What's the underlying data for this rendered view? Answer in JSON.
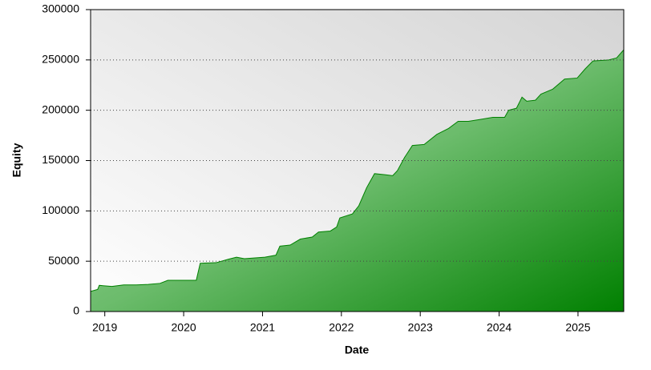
{
  "chart_data": {
    "type": "area",
    "x_label": "Date",
    "y_label": "Equity",
    "color": "#008000",
    "grid": true,
    "x": [
      2018.82,
      2018.91,
      2018.93,
      2019.09,
      2019.24,
      2019.4,
      2019.55,
      2019.7,
      2019.8,
      2020.01,
      2020.16,
      2020.21,
      2020.41,
      2020.57,
      2020.67,
      2020.77,
      2021.03,
      2021.17,
      2021.22,
      2021.35,
      2021.48,
      2021.63,
      2021.71,
      2021.86,
      2021.94,
      2021.98,
      2022.14,
      2022.22,
      2022.32,
      2022.42,
      2022.55,
      2022.65,
      2022.71,
      2022.8,
      2022.9,
      2023.05,
      2023.21,
      2023.36,
      2023.48,
      2023.61,
      2023.77,
      2023.92,
      2024.07,
      2024.12,
      2024.22,
      2024.29,
      2024.35,
      2024.46,
      2024.53,
      2024.68,
      2024.83,
      2024.99,
      2025.09,
      2025.19,
      2025.39,
      2025.49,
      2025.58
    ],
    "values": [
      20000,
      22000,
      26000,
      25000,
      26500,
      26500,
      27000,
      28000,
      31000,
      31000,
      31000,
      48000,
      48500,
      52000,
      54000,
      52500,
      54000,
      56000,
      65000,
      66000,
      72000,
      74000,
      79000,
      80000,
      84000,
      93000,
      97000,
      105000,
      123000,
      137000,
      136000,
      135000,
      140000,
      153000,
      165000,
      166000,
      176000,
      182000,
      189000,
      189000,
      191000,
      193000,
      193000,
      200000,
      202000,
      213000,
      209000,
      210000,
      216000,
      221000,
      231000,
      232000,
      241000,
      249000,
      250000,
      252000,
      260000
    ],
    "xlim": [
      2018.82,
      2025.58
    ],
    "xticks": [
      2019,
      2020,
      2021,
      2022,
      2023,
      2024,
      2025
    ],
    "ylim": [
      0,
      300000
    ],
    "yticks": [
      0,
      50000,
      100000,
      150000,
      200000,
      250000,
      300000
    ]
  }
}
